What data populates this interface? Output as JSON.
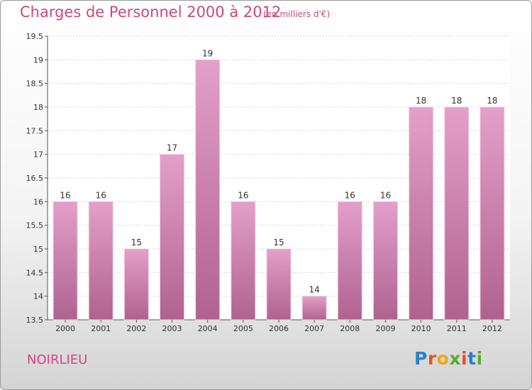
{
  "header": {
    "title": "Charges de Personnel 2000 à 2012",
    "subtitle": "(en milliers d'€)"
  },
  "footer": {
    "commune": "NOIRLIEU",
    "logo": "Proxiti",
    "logo_colors": [
      "#2a7fc8",
      "#e8501e",
      "#f2a414",
      "#5aaa32",
      "#e8501e",
      "#2a7fc8",
      "#5aaa32"
    ]
  },
  "chart_data": {
    "type": "bar",
    "categories": [
      "2000",
      "2001",
      "2002",
      "2003",
      "2004",
      "2005",
      "2006",
      "2007",
      "2008",
      "2009",
      "2010",
      "2011",
      "2012"
    ],
    "values": [
      16,
      16,
      15,
      17,
      19,
      16,
      15,
      14,
      16,
      16,
      18,
      18,
      18
    ],
    "data_labels": [
      "16",
      "16",
      "15",
      "17",
      "19",
      "16",
      "15",
      "14",
      "16",
      "16",
      "18",
      "18",
      "18"
    ],
    "yticks": [
      "13.5",
      "14",
      "14.5",
      "15",
      "15.5",
      "16",
      "16.5",
      "17",
      "17.5",
      "18",
      "18.5",
      "19",
      "19.5"
    ],
    "ylim": [
      13.5,
      19.5
    ],
    "grid": true,
    "bar_color": "#e3a0c8",
    "bar_color_dark": "#b0628e"
  }
}
